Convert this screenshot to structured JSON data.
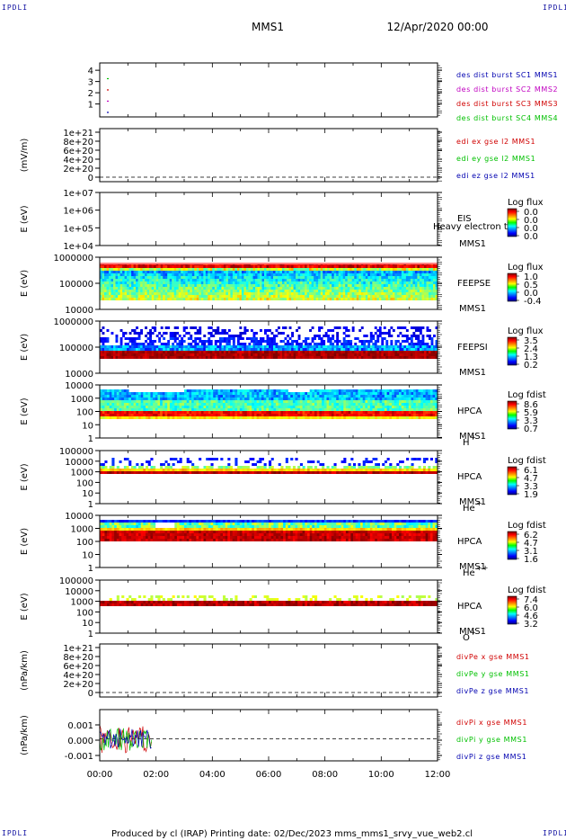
{
  "corners": {
    "tl": "IPDLI",
    "tr": "IPDLI",
    "bl": "IPDLI",
    "br": "IPDLI"
  },
  "header": {
    "mission": "MMS1",
    "datetime": "12/Apr/2020 00:00"
  },
  "footer": "Produced by cl (IRAP)    Printing date: 02/Dec/2023    mms_mms1_srvy_vue_web2.cl",
  "colors": {
    "axes": "#000000",
    "red": "#d00000",
    "green": "#00c000",
    "blue": "#0000b0",
    "magenta": "#c000c0",
    "stripe": "#ff8080"
  },
  "chart_data": {
    "type": "multi-panel time series",
    "x": {
      "ticks": [
        "00:00",
        "02:00",
        "04:00",
        "06:00",
        "08:00",
        "10:00",
        "12:00"
      ],
      "range_hours": [
        0,
        12
      ]
    },
    "panels": [
      {
        "id": "burst",
        "ylabel": "",
        "yticks": [
          "4",
          "3",
          "2",
          "1"
        ],
        "legend": [
          {
            "text": "des dist burst SC1 MMS1",
            "color": "#0000b0"
          },
          {
            "text": "des dist burst SC2 MMS2",
            "color": "#c000c0"
          },
          {
            "text": "des dist burst SC3 MMS3",
            "color": "#d00000"
          },
          {
            "text": "des dist burst SC4 MMS4",
            "color": "#00c000"
          }
        ],
        "series": [
          {
            "level": 4,
            "color": "#00c000",
            "t": 0.3
          },
          {
            "level": 3,
            "color": "#d00000",
            "t": 0.3
          },
          {
            "level": 2,
            "color": "#c000c0",
            "t": 0.3
          },
          {
            "level": 1,
            "color": "#0000b0",
            "t": 0.3
          }
        ]
      },
      {
        "id": "edi",
        "ylabel": "(mV/m)",
        "yticks": [
          "1e+21",
          "8e+20",
          "6e+20",
          "4e+20",
          "2e+20",
          "0"
        ],
        "legend": [
          {
            "text": "edi ex gse l2 MMS1",
            "color": "#d00000"
          },
          {
            "text": "edi ey gse l2 MMS1",
            "color": "#00c000"
          },
          {
            "text": "edi ez gse l2 MMS1",
            "color": "#0000b0"
          }
        ]
      },
      {
        "id": "eis",
        "ylabel": "E (eV)",
        "yticks": [
          "1e+07",
          "1e+06",
          "1e+05",
          "1e+04"
        ],
        "inst": [
          "EIS",
          "MMS1"
        ],
        "overlay": "Heavy electron te",
        "cbar": {
          "title": "Log flux",
          "ticks": [
            "0.0",
            "0.0",
            "0.0",
            "0.0"
          ]
        }
      },
      {
        "id": "feepse",
        "ylabel": "E (eV)",
        "yticks": [
          "1000000",
          "100000",
          "10000"
        ],
        "inst": [
          "FEEPSE",
          "MMS1"
        ],
        "cbar": {
          "title": "Log flux",
          "ticks": [
            "1.0",
            "0.5",
            "0.0",
            "-0.4"
          ]
        }
      },
      {
        "id": "feepsi",
        "ylabel": "E (eV)",
        "yticks": [
          "1000000",
          "100000",
          "10000"
        ],
        "inst": [
          "FEEPSI",
          "MMS1"
        ],
        "cbar": {
          "title": "Log flux",
          "ticks": [
            "3.5",
            "2.4",
            "1.3",
            "0.2"
          ]
        }
      },
      {
        "id": "hpca_h",
        "ylabel": "E (eV)",
        "yticks": [
          "10000",
          "1000",
          "100",
          "10",
          "1"
        ],
        "inst": [
          "HPCA",
          "MMS1"
        ],
        "species": "H",
        "sup": "+",
        "cbar": {
          "title": "Log fdist",
          "ticks": [
            "8.6",
            "5.9",
            "3.3",
            "0.7"
          ]
        }
      },
      {
        "id": "hpca_he",
        "ylabel": "E (eV)",
        "yticks": [
          "100000",
          "10000",
          "1000",
          "100",
          "10",
          "1"
        ],
        "inst": [
          "HPCA",
          "MMS1"
        ],
        "species": "He",
        "sup": "+",
        "cbar": {
          "title": "Log fdist",
          "ticks": [
            "6.1",
            "4.7",
            "3.3",
            "1.9"
          ]
        }
      },
      {
        "id": "hpca_hepp",
        "ylabel": "E (eV)",
        "yticks": [
          "10000",
          "1000",
          "100",
          "10",
          "1"
        ],
        "inst": [
          "HPCA",
          "MMS1"
        ],
        "species": "He",
        "sup": "++",
        "cbar": {
          "title": "Log fdist",
          "ticks": [
            "6.2",
            "4.7",
            "3.1",
            "1.6"
          ]
        }
      },
      {
        "id": "hpca_o",
        "ylabel": "E (eV)",
        "yticks": [
          "100000",
          "10000",
          "1000",
          "100",
          "10",
          "1"
        ],
        "inst": [
          "HPCA",
          "MMS1"
        ],
        "species": "O",
        "sup": "+",
        "cbar": {
          "title": "Log fdist",
          "ticks": [
            "7.4",
            "6.0",
            "4.6",
            "3.2"
          ]
        }
      },
      {
        "id": "divpe",
        "ylabel": "(nPa/km)",
        "yticks": [
          "1e+21",
          "8e+20",
          "6e+20",
          "4e+20",
          "2e+20",
          "0"
        ],
        "legend": [
          {
            "text": "divPe x gse MMS1",
            "color": "#d00000"
          },
          {
            "text": "divPe y gse MMS1",
            "color": "#00c000"
          },
          {
            "text": "divPe z gse MMS1",
            "color": "#0000b0"
          }
        ]
      },
      {
        "id": "divpi",
        "ylabel": "(nPa/km)",
        "yticks": [
          "0.001",
          "0.000",
          "-0.001"
        ],
        "legend": [
          {
            "text": "divPi x gse MMS1",
            "color": "#d00000"
          },
          {
            "text": "divPi y gse MMS1",
            "color": "#00c000"
          },
          {
            "text": "divPi z gse MMS1",
            "color": "#0000b0"
          }
        ],
        "data_extent_hours": [
          0,
          1.85
        ],
        "ylim": [
          -0.0015,
          0.0015
        ]
      }
    ]
  }
}
